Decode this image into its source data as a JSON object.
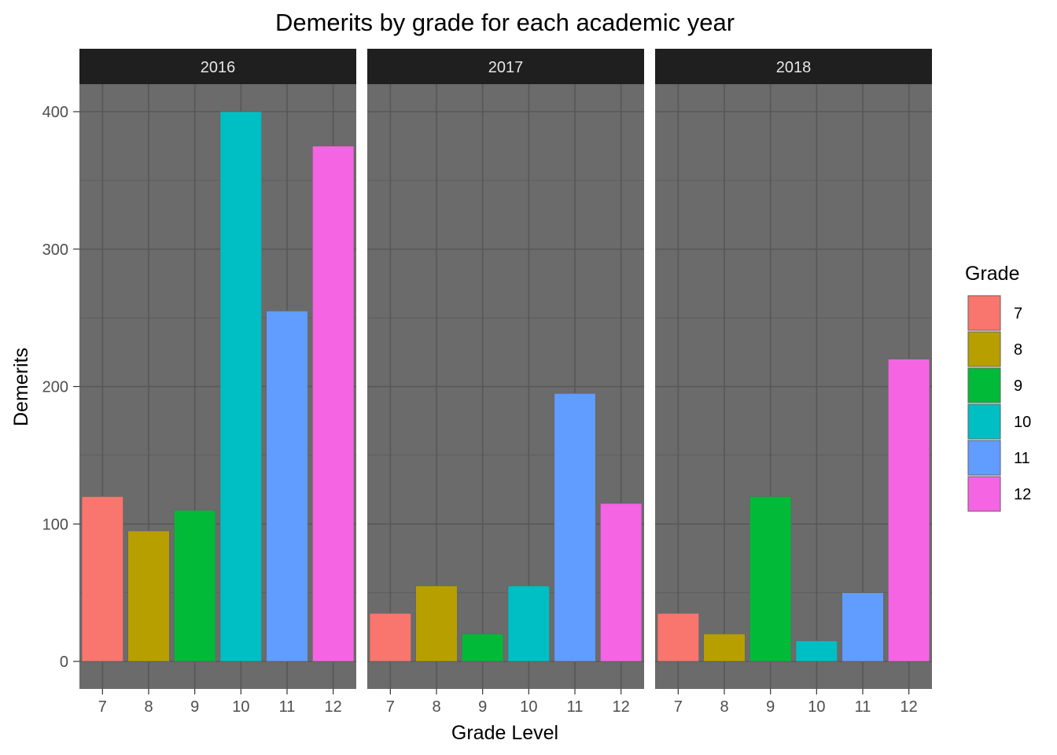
{
  "chart_data": {
    "type": "bar",
    "title": "Demerits by grade for each academic year",
    "xlabel": "Grade Level",
    "ylabel": "Demerits",
    "categories": [
      "7",
      "8",
      "9",
      "10",
      "11",
      "12"
    ],
    "ylim": [
      -20,
      425
    ],
    "yticks": [
      0,
      100,
      200,
      300,
      400
    ],
    "grid": true,
    "legend_position": "right",
    "legend_title": "Grade",
    "facets": [
      {
        "label": "2016",
        "values": [
          120,
          95,
          110,
          400,
          255,
          375
        ]
      },
      {
        "label": "2017",
        "values": [
          35,
          55,
          20,
          55,
          195,
          115
        ]
      },
      {
        "label": "2018",
        "values": [
          35,
          20,
          120,
          15,
          50,
          220
        ]
      }
    ],
    "colors": {
      "7": "#F8766D",
      "8": "#B79F00",
      "9": "#00BA38",
      "10": "#00BFC4",
      "11": "#619CFF",
      "12": "#F564E3"
    },
    "panel_background": "#6b6b6b",
    "strip_background": "#1f1f1f"
  }
}
